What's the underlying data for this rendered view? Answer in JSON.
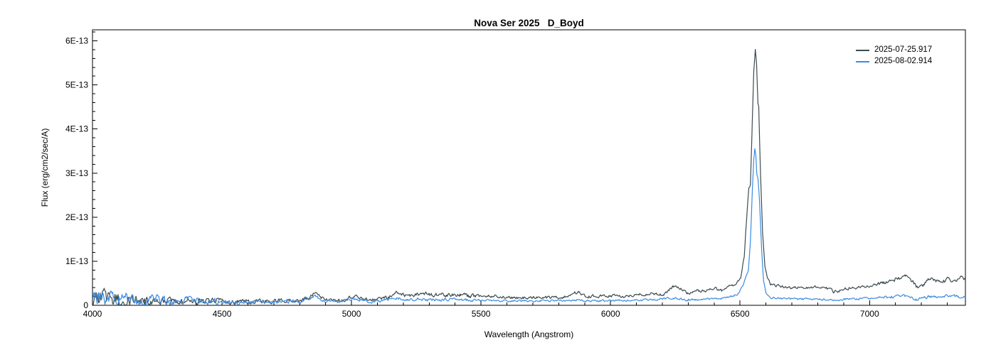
{
  "colors": {
    "background": "#ffffff",
    "axis": "#000000",
    "series1": "#3c4b4e",
    "series2": "#3b8ae0"
  },
  "chart_data": {
    "type": "line",
    "title": "Nova Ser 2025   D_Boyd",
    "xlabel": "Wavelength (Angstrom)",
    "ylabel": "Flux (erg/cm2/sec/A)",
    "xlim": [
      4000,
      7370
    ],
    "ylim_1e13": [
      0,
      6.25
    ],
    "x_major_ticks": [
      4000,
      4500,
      5000,
      5500,
      6000,
      6500,
      7000
    ],
    "x_minor_step": 100,
    "y_major_ticks_1e13": [
      0,
      1,
      2,
      3,
      4,
      5,
      6
    ],
    "y_major_tick_labels": [
      "0",
      "1E-13",
      "2E-13",
      "3E-13",
      "4E-13",
      "5E-13",
      "6E-13"
    ],
    "y_minor_step_1e13": 0.2,
    "grid": false,
    "legend_position": "top-right",
    "units_note": "point format: [wavelength_angstrom, flux_in_1e-13_erg/cm2/sec/A, noise_amplitude_1e-13]",
    "series": [
      {
        "name": "2025-07-25.917",
        "color": "#3c4b4e",
        "points": [
          [
            4000,
            0.2,
            0.17
          ],
          [
            4060,
            0.15,
            0.14
          ],
          [
            4120,
            0.12,
            0.12
          ],
          [
            4180,
            0.11,
            0.1
          ],
          [
            4250,
            0.1,
            0.08
          ],
          [
            4320,
            0.09,
            0.07
          ],
          [
            4400,
            0.1,
            0.06
          ],
          [
            4480,
            0.1,
            0.06
          ],
          [
            4560,
            0.09,
            0.05
          ],
          [
            4640,
            0.09,
            0.05
          ],
          [
            4720,
            0.1,
            0.04
          ],
          [
            4800,
            0.12,
            0.04
          ],
          [
            4840,
            0.15,
            0.04
          ],
          [
            4862,
            0.33,
            0.03
          ],
          [
            4885,
            0.17,
            0.03
          ],
          [
            4930,
            0.12,
            0.04
          ],
          [
            4980,
            0.13,
            0.04
          ],
          [
            5018,
            0.22,
            0.03
          ],
          [
            5045,
            0.13,
            0.03
          ],
          [
            5100,
            0.13,
            0.04
          ],
          [
            5145,
            0.19,
            0.04
          ],
          [
            5172,
            0.3,
            0.04
          ],
          [
            5205,
            0.24,
            0.04
          ],
          [
            5240,
            0.22,
            0.04
          ],
          [
            5272,
            0.28,
            0.04
          ],
          [
            5305,
            0.23,
            0.04
          ],
          [
            5340,
            0.26,
            0.04
          ],
          [
            5380,
            0.22,
            0.04
          ],
          [
            5420,
            0.25,
            0.04
          ],
          [
            5460,
            0.2,
            0.04
          ],
          [
            5505,
            0.22,
            0.03
          ],
          [
            5555,
            0.21,
            0.03
          ],
          [
            5605,
            0.18,
            0.03
          ],
          [
            5655,
            0.17,
            0.03
          ],
          [
            5705,
            0.18,
            0.03
          ],
          [
            5760,
            0.17,
            0.03
          ],
          [
            5820,
            0.18,
            0.03
          ],
          [
            5878,
            0.31,
            0.03
          ],
          [
            5905,
            0.19,
            0.03
          ],
          [
            5955,
            0.21,
            0.03
          ],
          [
            6005,
            0.22,
            0.03
          ],
          [
            6065,
            0.2,
            0.03
          ],
          [
            6125,
            0.25,
            0.03
          ],
          [
            6165,
            0.27,
            0.03
          ],
          [
            6205,
            0.23,
            0.03
          ],
          [
            6242,
            0.43,
            0.03
          ],
          [
            6268,
            0.38,
            0.03
          ],
          [
            6300,
            0.27,
            0.03
          ],
          [
            6340,
            0.34,
            0.03
          ],
          [
            6372,
            0.32,
            0.03
          ],
          [
            6402,
            0.38,
            0.03
          ],
          [
            6430,
            0.33,
            0.03
          ],
          [
            6458,
            0.44,
            0.02
          ],
          [
            6482,
            0.46,
            0.02
          ],
          [
            6502,
            0.62,
            0.02
          ],
          [
            6516,
            1.1,
            0.02
          ],
          [
            6528,
            2.2,
            0.02
          ],
          [
            6534,
            2.65,
            0.02
          ],
          [
            6540,
            2.72,
            0.02
          ],
          [
            6547,
            4.1,
            0.01
          ],
          [
            6553,
            5.3,
            0.01
          ],
          [
            6559,
            5.8,
            0.01
          ],
          [
            6564,
            5.45,
            0.01
          ],
          [
            6569,
            4.58,
            0.01
          ],
          [
            6572,
            4.5,
            0.01
          ],
          [
            6579,
            3.0,
            0.01
          ],
          [
            6587,
            1.65,
            0.01
          ],
          [
            6596,
            0.9,
            0.02
          ],
          [
            6606,
            0.62,
            0.02
          ],
          [
            6618,
            0.48,
            0.02
          ],
          [
            6645,
            0.43,
            0.03
          ],
          [
            6700,
            0.4,
            0.03
          ],
          [
            6760,
            0.4,
            0.03
          ],
          [
            6815,
            0.43,
            0.03
          ],
          [
            6862,
            0.31,
            0.03
          ],
          [
            6885,
            0.33,
            0.03
          ],
          [
            6925,
            0.4,
            0.03
          ],
          [
            6975,
            0.43,
            0.03
          ],
          [
            7025,
            0.47,
            0.03
          ],
          [
            7075,
            0.54,
            0.04
          ],
          [
            7112,
            0.62,
            0.04
          ],
          [
            7140,
            0.66,
            0.04
          ],
          [
            7168,
            0.52,
            0.04
          ],
          [
            7188,
            0.37,
            0.04
          ],
          [
            7208,
            0.45,
            0.04
          ],
          [
            7232,
            0.62,
            0.04
          ],
          [
            7256,
            0.55,
            0.04
          ],
          [
            7280,
            0.51,
            0.04
          ],
          [
            7306,
            0.62,
            0.04
          ],
          [
            7330,
            0.55,
            0.04
          ],
          [
            7352,
            0.63,
            0.04
          ],
          [
            7370,
            0.58,
            0.04
          ]
        ]
      },
      {
        "name": "2025-08-02.914",
        "color": "#3b8ae0",
        "points": [
          [
            4000,
            0.17,
            0.15
          ],
          [
            4060,
            0.16,
            0.14
          ],
          [
            4120,
            0.15,
            0.12
          ],
          [
            4180,
            0.13,
            0.11
          ],
          [
            4250,
            0.12,
            0.09
          ],
          [
            4320,
            0.1,
            0.08
          ],
          [
            4400,
            0.09,
            0.07
          ],
          [
            4480,
            0.09,
            0.06
          ],
          [
            4560,
            0.08,
            0.05
          ],
          [
            4640,
            0.08,
            0.04
          ],
          [
            4720,
            0.08,
            0.04
          ],
          [
            4800,
            0.09,
            0.04
          ],
          [
            4862,
            0.2,
            0.03
          ],
          [
            4890,
            0.1,
            0.03
          ],
          [
            4950,
            0.09,
            0.03
          ],
          [
            5018,
            0.14,
            0.03
          ],
          [
            5060,
            0.09,
            0.03
          ],
          [
            5120,
            0.1,
            0.03
          ],
          [
            5172,
            0.16,
            0.03
          ],
          [
            5220,
            0.12,
            0.03
          ],
          [
            5272,
            0.14,
            0.03
          ],
          [
            5320,
            0.12,
            0.03
          ],
          [
            5380,
            0.13,
            0.03
          ],
          [
            5440,
            0.11,
            0.03
          ],
          [
            5505,
            0.12,
            0.02
          ],
          [
            5560,
            0.11,
            0.02
          ],
          [
            5620,
            0.1,
            0.02
          ],
          [
            5700,
            0.1,
            0.02
          ],
          [
            5780,
            0.1,
            0.02
          ],
          [
            5878,
            0.13,
            0.02
          ],
          [
            5920,
            0.1,
            0.02
          ],
          [
            6005,
            0.11,
            0.02
          ],
          [
            6085,
            0.11,
            0.02
          ],
          [
            6165,
            0.13,
            0.02
          ],
          [
            6242,
            0.17,
            0.02
          ],
          [
            6300,
            0.12,
            0.02
          ],
          [
            6360,
            0.14,
            0.02
          ],
          [
            6420,
            0.15,
            0.02
          ],
          [
            6458,
            0.19,
            0.02
          ],
          [
            6492,
            0.26,
            0.02
          ],
          [
            6512,
            0.45,
            0.01
          ],
          [
            6524,
            0.68,
            0.01
          ],
          [
            6532,
            0.78,
            0.01
          ],
          [
            6540,
            1.45,
            0.01
          ],
          [
            6548,
            2.7,
            0.01
          ],
          [
            6553,
            3.3,
            0.01
          ],
          [
            6557,
            3.56,
            0.01
          ],
          [
            6561,
            3.42,
            0.01
          ],
          [
            6565,
            2.96,
            0.01
          ],
          [
            6569,
            2.88,
            0.01
          ],
          [
            6575,
            2.4,
            0.01
          ],
          [
            6583,
            1.3,
            0.01
          ],
          [
            6591,
            0.55,
            0.01
          ],
          [
            6600,
            0.28,
            0.01
          ],
          [
            6615,
            0.18,
            0.02
          ],
          [
            6655,
            0.15,
            0.02
          ],
          [
            6720,
            0.14,
            0.02
          ],
          [
            6800,
            0.14,
            0.02
          ],
          [
            6862,
            0.12,
            0.02
          ],
          [
            6905,
            0.14,
            0.02
          ],
          [
            6960,
            0.15,
            0.02
          ],
          [
            7025,
            0.17,
            0.02
          ],
          [
            7085,
            0.19,
            0.03
          ],
          [
            7140,
            0.21,
            0.03
          ],
          [
            7180,
            0.13,
            0.03
          ],
          [
            7212,
            0.18,
            0.03
          ],
          [
            7252,
            0.2,
            0.03
          ],
          [
            7300,
            0.21,
            0.03
          ],
          [
            7340,
            0.2,
            0.03
          ],
          [
            7370,
            0.19,
            0.03
          ]
        ]
      }
    ]
  }
}
